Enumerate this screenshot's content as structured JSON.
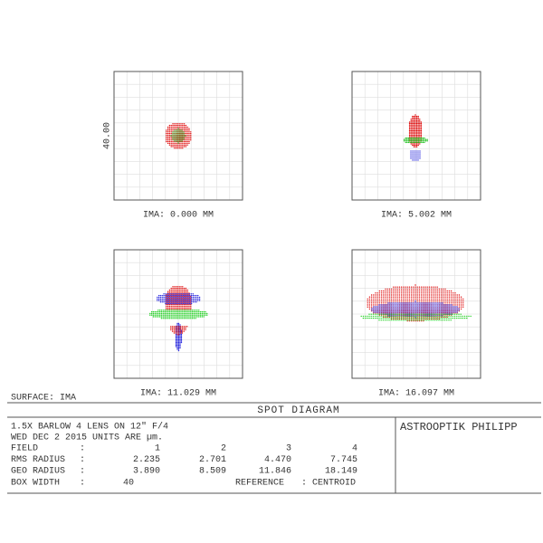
{
  "panels": [
    {
      "label": "IMA: 0.000 MM"
    },
    {
      "label": "IMA: 5.002 MM"
    },
    {
      "label": "IMA: 11.029 MM"
    },
    {
      "label": "IMA: 16.097 MM"
    }
  ],
  "scale_label": "40.00",
  "surface": "SURFACE: IMA",
  "title": "SPOT DIAGRAM",
  "info": {
    "line1": "1.5X BARLOW 4 LENS ON 12\" F/4",
    "line2": "WED DEC 2 2015  UNITS ARE µm.",
    "rows": [
      [
        "FIELD",
        ":",
        "1",
        "2",
        "3",
        "4"
      ],
      [
        "RMS RADIUS",
        ":",
        "2.235",
        "2.701",
        "4.470",
        "7.745"
      ],
      [
        "GEO RADIUS",
        ":",
        "3.890",
        "8.509",
        "11.846",
        "18.149"
      ]
    ],
    "last_row": [
      "BOX WIDTH",
      ":",
      "40",
      "REFERENCE",
      ":",
      "CENTROID"
    ]
  },
  "company": "ASTROOPTIK PHILIPP"
}
